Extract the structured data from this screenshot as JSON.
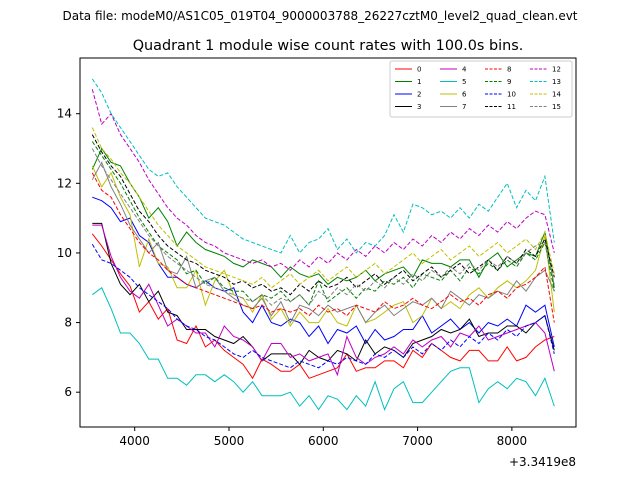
{
  "suptitle": "Data file: modeM0/AS1C05_019T04_9000003788_26227cztM0_level2_quad_clean.evt",
  "chart_data": {
    "type": "line",
    "title": "Quadrant 1 module wise count rates with 100.0s bins.",
    "xlabel": "",
    "ylabel": "",
    "x_offset_label": "+3.3419e8",
    "xlim": [
      3420,
      8680
    ],
    "ylim": [
      5.0,
      15.6
    ],
    "xticks": [
      4000,
      5000,
      6000,
      7000,
      8000
    ],
    "yticks": [
      6,
      8,
      10,
      12,
      14
    ],
    "x": [
      3550,
      3650,
      3750,
      3850,
      3950,
      4050,
      4150,
      4250,
      4350,
      4450,
      4550,
      4650,
      4750,
      4850,
      4950,
      5050,
      5150,
      5250,
      5350,
      5450,
      5550,
      5650,
      5750,
      5850,
      5950,
      6050,
      6150,
      6250,
      6350,
      6450,
      6550,
      6650,
      6750,
      6850,
      6950,
      7050,
      7150,
      7250,
      7350,
      7450,
      7550,
      7650,
      7750,
      7850,
      7950,
      8050,
      8150,
      8250,
      8350,
      8450
    ],
    "legend_position": "top-right",
    "series": [
      {
        "name": "0",
        "color": "#ff0000",
        "dash": "solid",
        "values": [
          10.55,
          10.2,
          9.8,
          9.4,
          9.05,
          8.3,
          8.6,
          8.1,
          8.4,
          7.5,
          7.4,
          7.9,
          7.3,
          7.5,
          7.2,
          7.0,
          6.8,
          6.4,
          6.95,
          6.8,
          6.6,
          6.6,
          6.8,
          6.4,
          6.5,
          6.6,
          6.7,
          7.1,
          6.6,
          6.7,
          6.7,
          6.9,
          6.9,
          6.7,
          7.2,
          7.0,
          7.4,
          7.2,
          7.0,
          6.9,
          7.2,
          7.2,
          6.9,
          6.9,
          7.3,
          6.9,
          7.0,
          7.3,
          7.5,
          7.6
        ]
      },
      {
        "name": "1",
        "color": "#008000",
        "dash": "solid",
        "values": [
          12.4,
          13.0,
          12.6,
          12.5,
          12.0,
          11.6,
          11.0,
          11.3,
          10.9,
          10.2,
          10.6,
          10.3,
          10.1,
          10.0,
          9.9,
          9.7,
          9.6,
          9.8,
          9.7,
          9.6,
          9.3,
          9.6,
          9.4,
          9.3,
          9.4,
          9.1,
          9.3,
          9.2,
          9.3,
          9.5,
          9.2,
          9.4,
          9.5,
          9.6,
          9.3,
          9.8,
          9.7,
          9.7,
          9.6,
          9.8,
          9.8,
          9.3,
          9.8,
          10.0,
          9.6,
          9.8,
          10.0,
          9.9,
          10.6,
          9.0
        ]
      },
      {
        "name": "2",
        "color": "#0000ff",
        "dash": "solid",
        "values": [
          11.6,
          11.5,
          11.3,
          10.9,
          11.0,
          10.5,
          10.3,
          9.7,
          9.3,
          9.3,
          9.1,
          9.0,
          9.2,
          9.0,
          8.9,
          9.0,
          8.3,
          8.0,
          8.5,
          8.0,
          7.9,
          8.1,
          8.0,
          7.6,
          7.9,
          7.4,
          7.8,
          7.7,
          7.9,
          7.4,
          7.8,
          7.5,
          7.6,
          7.8,
          7.8,
          8.2,
          7.7,
          7.9,
          8.1,
          7.8,
          8.0,
          7.7,
          8.0,
          7.9,
          8.1,
          7.9,
          8.5,
          8.3,
          8.5,
          7.3
        ]
      },
      {
        "name": "3",
        "color": "#000000",
        "dash": "solid",
        "values": [
          10.85,
          10.85,
          9.7,
          9.1,
          8.8,
          9.1,
          8.6,
          8.9,
          8.3,
          8.2,
          7.8,
          7.8,
          7.8,
          7.6,
          7.5,
          7.4,
          7.6,
          7.3,
          6.9,
          7.1,
          7.1,
          7.1,
          6.8,
          7.2,
          7.0,
          6.9,
          7.2,
          7.1,
          6.9,
          7.5,
          7.1,
          7.3,
          7.2,
          7.0,
          7.4,
          7.5,
          7.6,
          7.8,
          7.7,
          7.8,
          8.1,
          7.6,
          7.7,
          7.7,
          7.9,
          7.9,
          7.7,
          8.0,
          8.2,
          7.2
        ]
      },
      {
        "name": "4",
        "color": "#bf00bf",
        "dash": "solid",
        "values": [
          10.8,
          10.8,
          9.9,
          9.3,
          8.9,
          8.7,
          9.1,
          8.5,
          7.9,
          8.1,
          7.9,
          7.7,
          7.7,
          7.3,
          7.9,
          7.6,
          7.5,
          7.3,
          6.9,
          7.4,
          7.4,
          7.0,
          7.1,
          6.9,
          7.0,
          7.1,
          6.5,
          7.6,
          7.0,
          6.8,
          7.0,
          7.1,
          7.3,
          7.1,
          7.5,
          7.3,
          7.5,
          7.6,
          7.3,
          7.7,
          7.6,
          7.9,
          7.5,
          7.6,
          7.7,
          7.8,
          7.9,
          8.0,
          7.7,
          6.6
        ]
      },
      {
        "name": "5",
        "color": "#00bfbf",
        "dash": "solid",
        "values": [
          8.8,
          9.0,
          8.4,
          7.7,
          7.7,
          7.4,
          6.95,
          6.95,
          6.4,
          6.4,
          6.2,
          6.5,
          6.5,
          6.3,
          6.5,
          6.3,
          6.0,
          6.3,
          5.9,
          5.9,
          5.9,
          6.0,
          5.6,
          5.9,
          5.5,
          5.9,
          5.8,
          5.5,
          5.9,
          5.6,
          6.3,
          5.5,
          6.1,
          6.3,
          5.7,
          5.7,
          6.0,
          6.3,
          6.6,
          6.7,
          6.7,
          5.7,
          6.1,
          6.3,
          6.1,
          6.4,
          6.3,
          5.9,
          6.4,
          5.6
        ]
      },
      {
        "name": "6",
        "color": "#bfbf00",
        "dash": "solid",
        "values": [
          12.5,
          11.9,
          12.3,
          11.6,
          11.1,
          9.6,
          10.4,
          9.7,
          9.6,
          9.0,
          9.0,
          9.5,
          8.5,
          9.2,
          9.5,
          8.8,
          8.7,
          8.3,
          8.8,
          8.1,
          8.4,
          7.9,
          8.3,
          8.0,
          8.0,
          8.4,
          8.0,
          7.9,
          8.5,
          8.0,
          8.1,
          8.3,
          8.5,
          8.6,
          8.0,
          8.2,
          8.7,
          8.4,
          8.6,
          8.4,
          8.8,
          9.0,
          8.7,
          9.0,
          9.2,
          9.0,
          9.2,
          9.5,
          10.5,
          8.3
        ]
      },
      {
        "name": "7",
        "color": "#808080",
        "dash": "solid",
        "values": [
          12.1,
          12.6,
          11.9,
          11.4,
          10.8,
          10.4,
          10.0,
          10.3,
          9.5,
          9.4,
          9.9,
          9.0,
          9.2,
          9.3,
          8.9,
          8.7,
          8.5,
          8.4,
          8.7,
          8.2,
          8.6,
          8.0,
          8.5,
          8.4,
          8.2,
          8.5,
          8.3,
          8.4,
          8.5,
          8.0,
          8.3,
          8.5,
          8.2,
          8.4,
          8.6,
          8.5,
          8.7,
          8.4,
          8.9,
          8.7,
          8.5,
          8.8,
          8.7,
          8.9,
          8.8,
          9.2,
          8.9,
          9.3,
          9.5,
          8.9
        ]
      },
      {
        "name": "8",
        "color": "#ff0000",
        "dash": "dashed",
        "values": [
          12.3,
          11.8,
          11.6,
          11.1,
          10.7,
          10.3,
          10.0,
          9.8,
          9.5,
          9.3,
          9.1,
          9.0,
          8.9,
          8.8,
          8.7,
          8.6,
          8.5,
          8.4,
          8.5,
          8.3,
          8.4,
          8.3,
          8.4,
          8.2,
          8.5,
          8.3,
          8.4,
          8.2,
          8.5,
          8.4,
          8.3,
          8.6,
          8.4,
          8.5,
          8.7,
          8.5,
          8.4,
          8.6,
          8.8,
          8.6,
          8.7,
          8.5,
          8.8,
          8.9,
          8.7,
          9.0,
          9.1,
          9.3,
          9.6,
          8.0
        ]
      },
      {
        "name": "9",
        "color": "#008000",
        "dash": "dashed",
        "values": [
          13.2,
          12.8,
          12.4,
          12.0,
          11.5,
          11.0,
          10.6,
          10.2,
          10.0,
          9.8,
          9.4,
          9.5,
          9.1,
          9.3,
          9.0,
          8.9,
          8.9,
          8.6,
          8.8,
          8.7,
          8.9,
          8.6,
          8.8,
          8.5,
          9.2,
          8.6,
          8.8,
          9.0,
          8.7,
          9.0,
          8.9,
          9.2,
          9.1,
          9.3,
          9.0,
          9.4,
          9.3,
          9.2,
          9.5,
          9.2,
          9.6,
          9.4,
          9.7,
          9.5,
          9.8,
          9.6,
          10.0,
          9.8,
          10.3,
          8.9
        ]
      },
      {
        "name": "10",
        "color": "#0000ff",
        "dash": "dashed",
        "values": [
          10.25,
          9.8,
          9.7,
          9.5,
          9.3,
          9.0,
          8.8,
          8.6,
          8.4,
          8.1,
          7.9,
          7.8,
          7.6,
          7.5,
          7.3,
          7.1,
          7.0,
          7.2,
          7.0,
          6.9,
          6.8,
          6.7,
          6.9,
          6.8,
          6.7,
          6.9,
          6.8,
          7.0,
          6.9,
          6.8,
          7.1,
          7.0,
          7.2,
          7.0,
          7.3,
          7.1,
          7.4,
          7.2,
          7.5,
          7.3,
          7.6,
          7.4,
          7.7,
          7.5,
          7.8,
          7.6,
          7.9,
          8.0,
          8.2,
          7.1
        ]
      },
      {
        "name": "11",
        "color": "#000000",
        "dash": "dashed",
        "values": [
          13.4,
          12.9,
          12.5,
          12.2,
          11.7,
          11.2,
          10.9,
          10.5,
          10.2,
          10.0,
          9.8,
          9.7,
          9.5,
          9.4,
          9.3,
          9.1,
          9.2,
          9.0,
          9.1,
          8.9,
          9.0,
          8.8,
          9.1,
          8.9,
          9.2,
          9.0,
          9.1,
          9.3,
          9.0,
          9.2,
          9.4,
          9.1,
          9.3,
          9.5,
          9.2,
          9.4,
          9.6,
          9.3,
          9.5,
          9.7,
          9.4,
          9.6,
          9.8,
          9.5,
          9.9,
          9.7,
          10.1,
          9.9,
          10.4,
          9.3
        ]
      },
      {
        "name": "12",
        "color": "#bf00bf",
        "dash": "dashed",
        "values": [
          14.7,
          13.7,
          14.0,
          13.4,
          13.0,
          12.6,
          12.1,
          11.7,
          11.3,
          11.0,
          10.8,
          10.5,
          10.3,
          10.2,
          10.0,
          9.9,
          9.8,
          9.7,
          9.8,
          9.6,
          9.7,
          9.5,
          9.8,
          9.6,
          9.9,
          9.7,
          10.0,
          9.8,
          10.1,
          9.9,
          10.2,
          10.0,
          10.3,
          10.1,
          10.4,
          10.2,
          10.5,
          10.3,
          10.6,
          10.4,
          10.7,
          10.5,
          10.8,
          10.6,
          10.9,
          10.7,
          11.0,
          11.2,
          11.1,
          10.0
        ]
      },
      {
        "name": "13",
        "color": "#00bfbf",
        "dash": "dashed",
        "values": [
          15.0,
          14.6,
          14.0,
          13.6,
          13.2,
          12.8,
          12.4,
          12.2,
          12.3,
          11.9,
          11.6,
          11.3,
          11.0,
          10.9,
          10.8,
          10.6,
          10.4,
          10.3,
          10.2,
          10.1,
          10.0,
          10.5,
          10.0,
          10.3,
          10.4,
          10.7,
          10.1,
          10.4,
          10.0,
          10.3,
          10.2,
          10.5,
          11.1,
          10.6,
          11.4,
          11.3,
          11.1,
          11.2,
          11.0,
          11.3,
          11.0,
          11.4,
          11.2,
          11.6,
          12.0,
          11.3,
          11.8,
          11.5,
          12.2,
          10.3
        ]
      },
      {
        "name": "14",
        "color": "#bfbf00",
        "dash": "dashed",
        "values": [
          13.6,
          13.0,
          12.7,
          12.3,
          12.0,
          11.6,
          11.2,
          10.8,
          10.5,
          10.2,
          10.0,
          9.8,
          9.6,
          9.5,
          9.4,
          9.3,
          9.2,
          9.1,
          9.3,
          9.0,
          9.2,
          9.4,
          9.1,
          9.3,
          9.5,
          9.2,
          9.4,
          9.6,
          9.3,
          9.5,
          9.7,
          9.4,
          9.6,
          9.8,
          10.0,
          9.7,
          9.9,
          10.1,
          9.8,
          10.0,
          10.2,
          9.9,
          10.1,
          10.3,
          10.0,
          10.2,
          10.4,
          10.1,
          10.6,
          9.4
        ]
      },
      {
        "name": "15",
        "color": "#808080",
        "dash": "dashed",
        "values": [
          13.0,
          12.5,
          12.1,
          11.7,
          11.3,
          10.9,
          10.5,
          10.2,
          9.9,
          9.7,
          9.5,
          9.3,
          9.1,
          9.0,
          8.9,
          8.8,
          8.7,
          8.6,
          8.8,
          8.5,
          8.7,
          8.6,
          8.8,
          8.5,
          8.9,
          8.7,
          9.0,
          8.8,
          9.1,
          8.9,
          9.2,
          9.0,
          9.3,
          9.1,
          9.4,
          9.2,
          9.5,
          9.3,
          9.6,
          9.4,
          9.7,
          9.5,
          9.8,
          9.6,
          9.9,
          9.7,
          10.0,
          10.2,
          10.3,
          9.1
        ]
      }
    ]
  }
}
